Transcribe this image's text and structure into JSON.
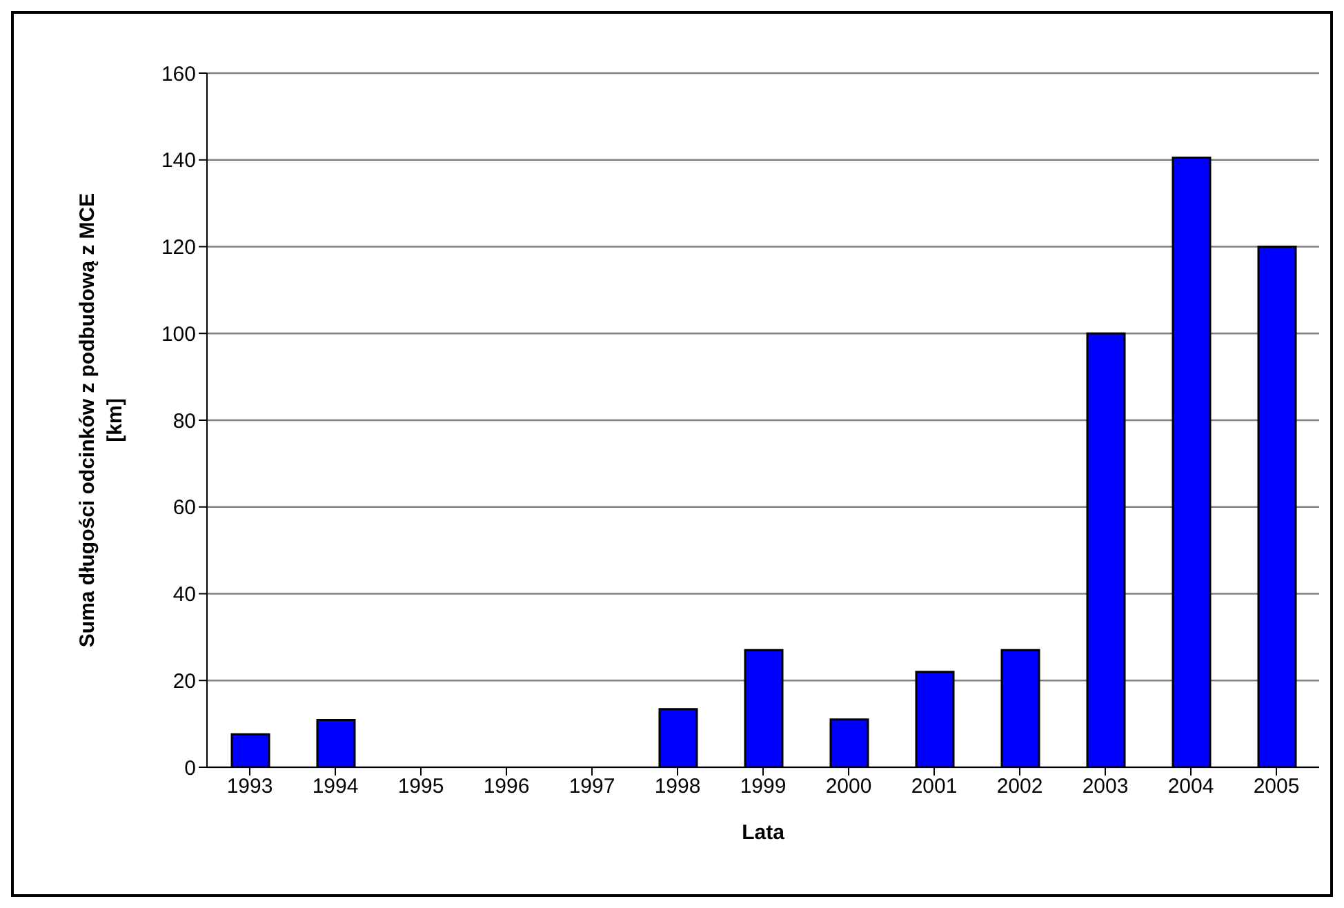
{
  "chart_data": {
    "type": "bar",
    "xlabel": "Lata",
    "ylabel": "Suma długości odcinków z podbudową z MCE [km]",
    "categories": [
      "1993",
      "1994",
      "1995",
      "1996",
      "1997",
      "1998",
      "1999",
      "2000",
      "2001",
      "2002",
      "2003",
      "2004",
      "2005"
    ],
    "values": [
      7.6,
      10.9,
      0,
      0,
      0,
      13.4,
      27,
      11,
      22,
      27,
      100,
      140.5,
      120
    ],
    "color": "#0000ff",
    "ylim": [
      0,
      160
    ],
    "yticks": [
      0,
      20,
      40,
      60,
      80,
      100,
      120,
      140,
      160
    ],
    "grid": "y",
    "legend": false
  }
}
